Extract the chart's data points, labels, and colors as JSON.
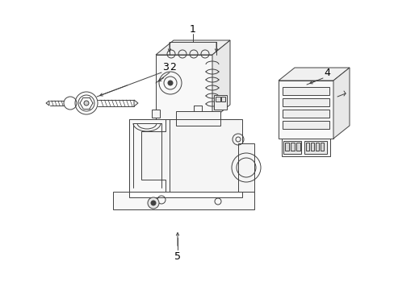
{
  "background_color": "#ffffff",
  "line_color": "#404040",
  "text_color": "#000000",
  "fig_width": 4.89,
  "fig_height": 3.6,
  "dpi": 100,
  "label_fontsize": 9,
  "lw": 0.7
}
